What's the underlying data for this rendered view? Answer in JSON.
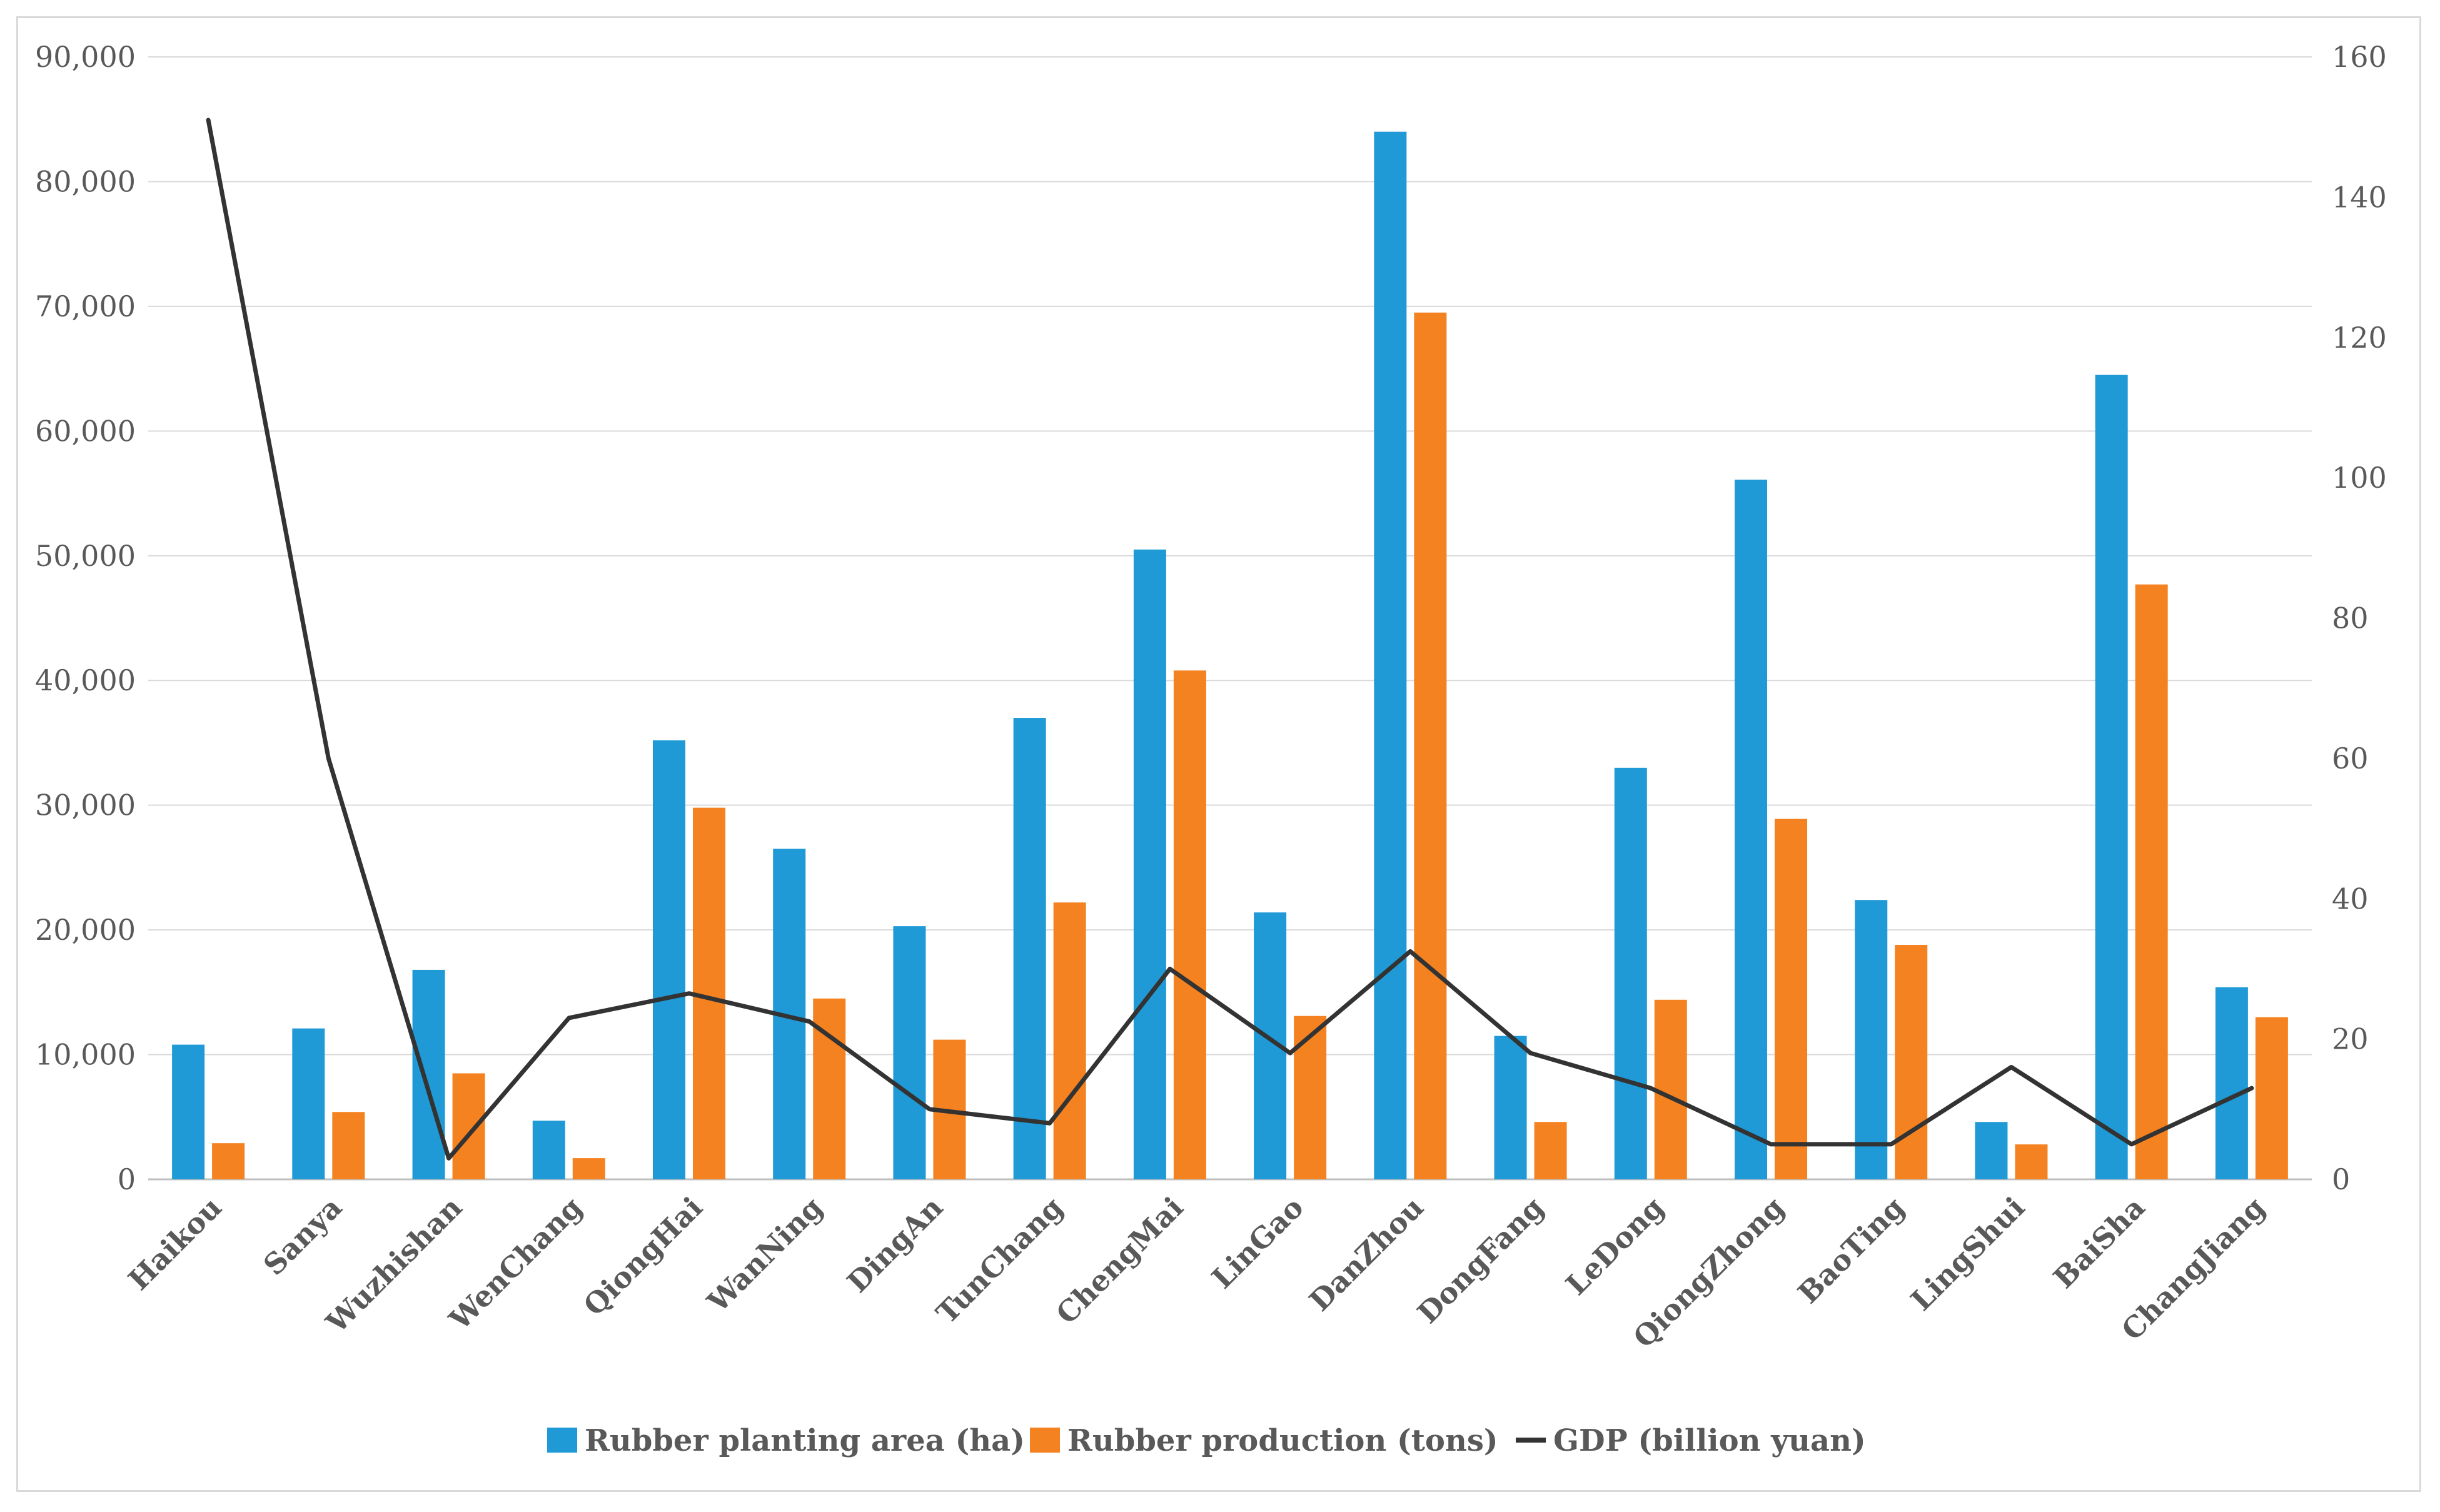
{
  "chart_data": {
    "type": "bar",
    "categories": [
      "Haikou",
      "Sanya",
      "Wuzhishan",
      "WenChang",
      "QiongHai",
      "WanNing",
      "DingAn",
      "TunChang",
      "ChengMai",
      "LinGao",
      "DanZhou",
      "DongFang",
      "LeDong",
      "QiongZhong",
      "BaoTing",
      "LingShui",
      "BaiSha",
      "ChangJiang"
    ],
    "series": [
      {
        "name": "Rubber planting area (ha)",
        "type": "bar",
        "axis": "left",
        "color": "#1f9ad6",
        "values": [
          10800,
          12100,
          16800,
          4700,
          35200,
          26500,
          20300,
          37000,
          50500,
          21400,
          84000,
          11500,
          33000,
          56100,
          22400,
          4600,
          64500,
          15400
        ]
      },
      {
        "name": "Rubber production (tons)",
        "type": "bar",
        "axis": "left",
        "color": "#f58220",
        "values": [
          2900,
          5400,
          8500,
          1700,
          29800,
          14500,
          11200,
          22200,
          40800,
          13100,
          69500,
          4600,
          14400,
          28900,
          18800,
          2800,
          47700,
          13000
        ]
      },
      {
        "name": "GDP (billion yuan)",
        "type": "line",
        "axis": "right",
        "color": "#333333",
        "values": [
          151,
          60,
          3,
          23,
          26.5,
          22.5,
          10,
          8,
          30,
          18,
          32.5,
          18,
          13,
          5,
          5,
          16,
          5,
          13
        ]
      }
    ],
    "left_axis": {
      "ylim": [
        0,
        90000
      ],
      "ticks": [
        0,
        10000,
        20000,
        30000,
        40000,
        50000,
        60000,
        70000,
        80000,
        90000
      ],
      "tick_labels": [
        "0",
        "10,000",
        "20,000",
        "30,000",
        "40,000",
        "50,000",
        "60,000",
        "70,000",
        "80,000",
        "90,000"
      ]
    },
    "right_axis": {
      "ylim": [
        0,
        160
      ],
      "ticks": [
        0,
        20,
        40,
        60,
        80,
        100,
        120,
        140,
        160
      ],
      "tick_labels": [
        "0",
        "20",
        "40",
        "60",
        "80",
        "100",
        "120",
        "140",
        "160"
      ]
    },
    "grid": true,
    "legend_position": "bottom"
  }
}
